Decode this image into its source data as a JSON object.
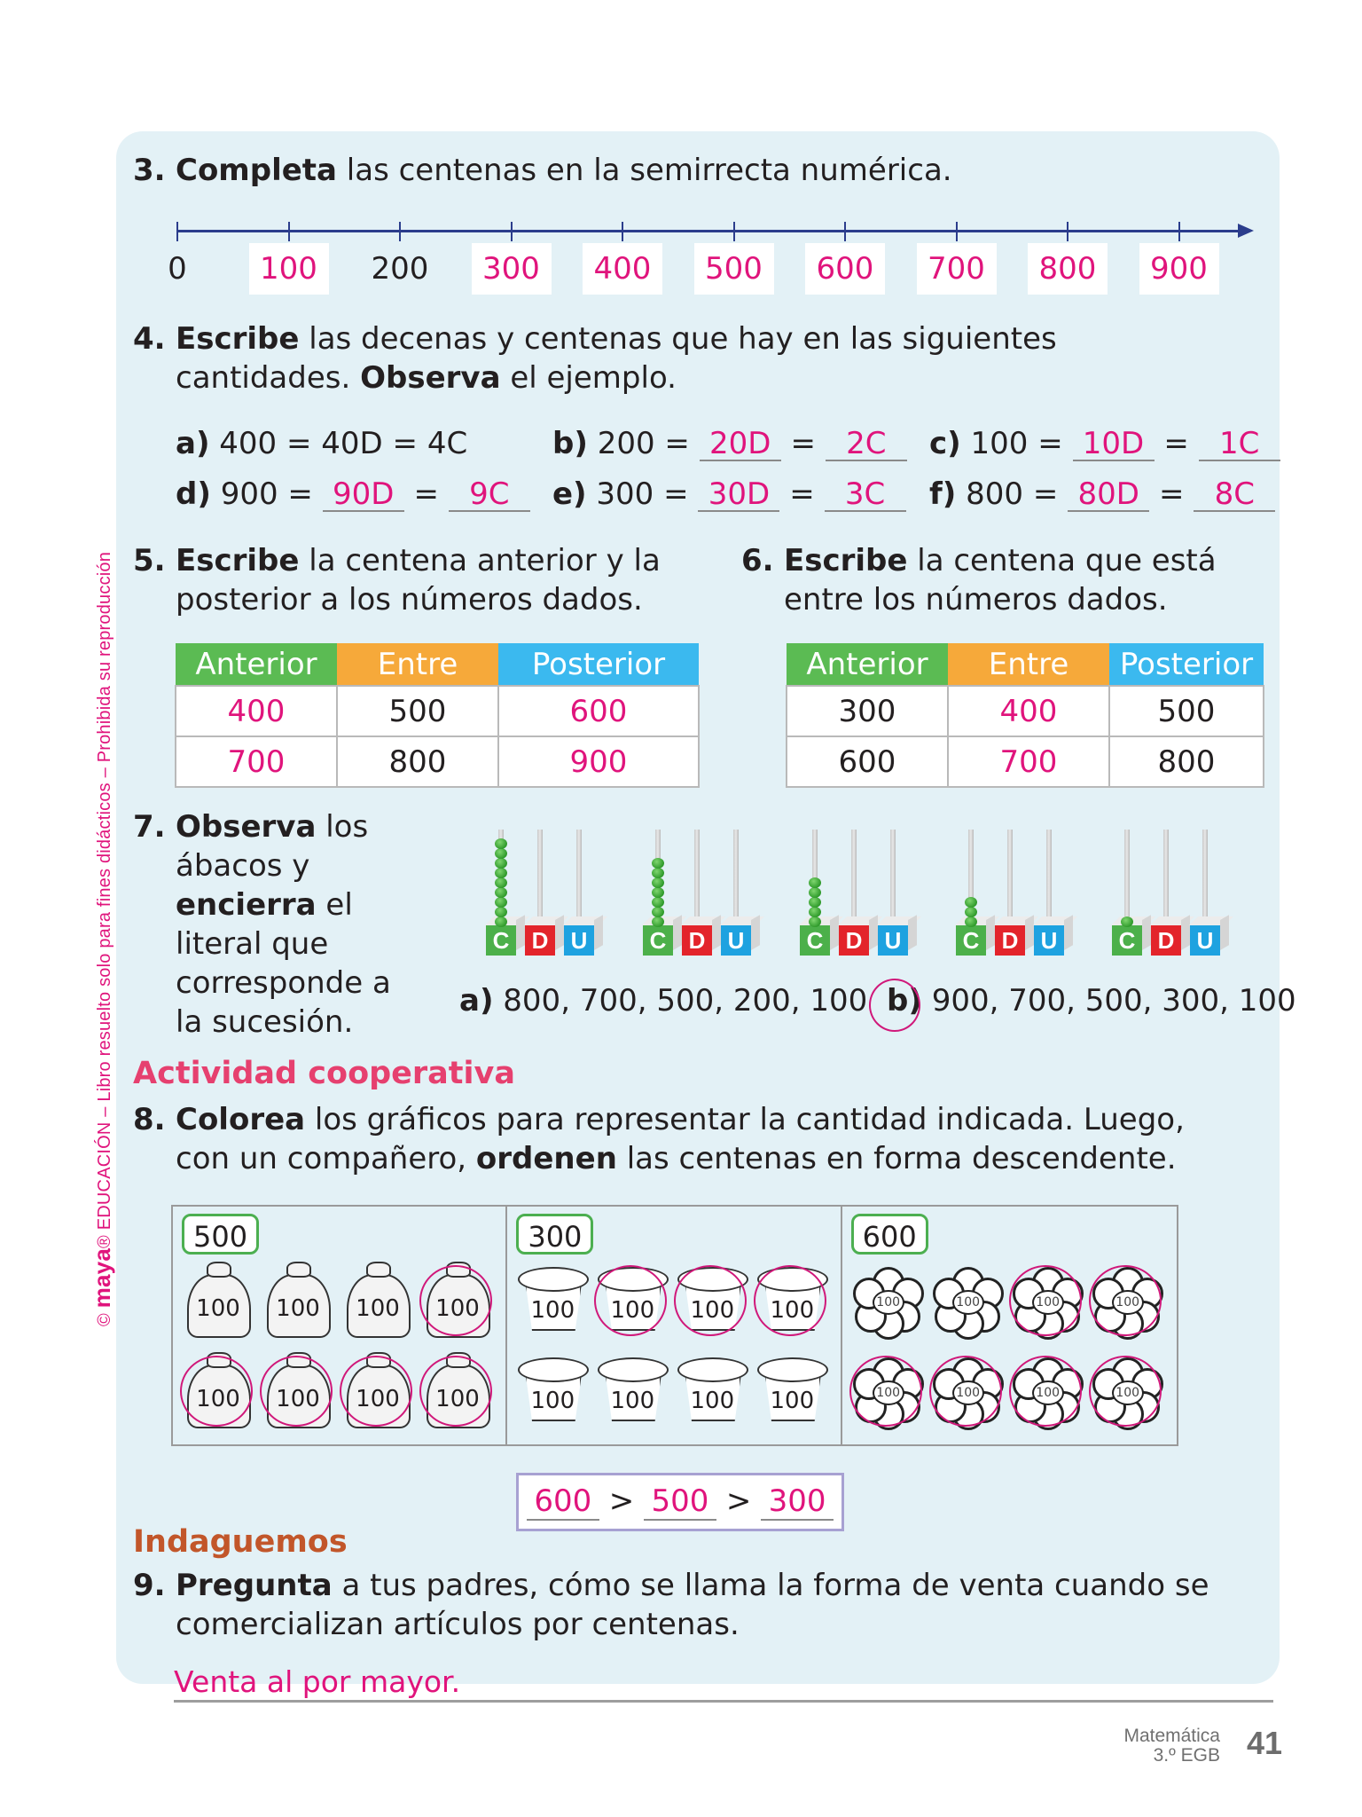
{
  "watermark": {
    "brand": "maya",
    "text": "EDUCACIÓN – Libro resuelto solo para fines didácticos – Prohibida su reproducción"
  },
  "q3": {
    "number": "3.",
    "bold": "Completa",
    "text": " las centenas en la semirrecta numérica.",
    "labels": [
      {
        "value": "0",
        "answer": false
      },
      {
        "value": "100",
        "answer": true
      },
      {
        "value": "200",
        "answer": false
      },
      {
        "value": "300",
        "answer": true
      },
      {
        "value": "400",
        "answer": true
      },
      {
        "value": "500",
        "answer": true
      },
      {
        "value": "600",
        "answer": true
      },
      {
        "value": "700",
        "answer": true
      },
      {
        "value": "800",
        "answer": true
      },
      {
        "value": "900",
        "answer": true
      }
    ]
  },
  "q4": {
    "number": "4.",
    "bold1": "Escribe",
    "text1": " las decenas y centenas que hay en las siguientes",
    "text2": "cantidades. ",
    "bold2": "Observa",
    "text3": " el ejemplo.",
    "example": {
      "letter": "a)",
      "text": "400 = 40D = 4C"
    },
    "items": [
      {
        "letter": "b)",
        "number": "200",
        "tens": "20D",
        "hundreds": "2C"
      },
      {
        "letter": "c)",
        "number": "100",
        "tens": "10D",
        "hundreds": "1C"
      },
      {
        "letter": "d)",
        "number": "900",
        "tens": "90D",
        "hundreds": "9C"
      },
      {
        "letter": "e)",
        "number": "300",
        "tens": "30D",
        "hundreds": "3C"
      },
      {
        "letter": "f)",
        "number": "800",
        "tens": "80D",
        "hundreds": "8C"
      }
    ]
  },
  "q5": {
    "number": "5.",
    "bold": "Escribe",
    "text1": " la centena anterior y la",
    "text2": "posterior a los números dados.",
    "headers": [
      "Anterior",
      "Entre",
      "Posterior"
    ],
    "rows": [
      [
        "400",
        "500",
        "600"
      ],
      [
        "700",
        "800",
        "900"
      ]
    ]
  },
  "q6": {
    "number": "6.",
    "bold": "Escribe",
    "text1": " la centena que está",
    "text2": "entre los números dados.",
    "headers": [
      "Anterior",
      "Entre",
      "Posterior"
    ],
    "rows": [
      [
        "300",
        "400",
        "500"
      ],
      [
        "600",
        "700",
        "800"
      ]
    ]
  },
  "q7": {
    "number": "7.",
    "lines": [
      {
        "bold": "Observa",
        "text": " los"
      },
      {
        "bold": "",
        "text": "ábacos y"
      },
      {
        "bold": "encierra",
        "text": " el"
      },
      {
        "bold": "",
        "text": "literal que"
      },
      {
        "bold": "",
        "text": "corresponde a"
      },
      {
        "bold": "",
        "text": "la sucesión."
      }
    ],
    "abacus_labels": [
      "C",
      "D",
      "U"
    ],
    "abaci_hundreds_beads": [
      9,
      7,
      5,
      3,
      1
    ],
    "options": [
      {
        "letter": "a)",
        "text": "800, 700, 500, 200, 100",
        "circled": false
      },
      {
        "letter": "b)",
        "text": "900, 700, 500, 300, 100",
        "circled": true
      }
    ]
  },
  "coop": {
    "title": "Actividad cooperativa"
  },
  "q8": {
    "number": "8.",
    "bold1": "Colorea",
    "text1": " los gráficos para representar la cantidad indicada. Luego,",
    "text2": "con un compañero, ",
    "bold2": "ordenen",
    "text3": " las centenas en forma descendente.",
    "panels": [
      {
        "target": "500",
        "kind": "bag",
        "item_value": "100",
        "circled": [
          false,
          false,
          false,
          true,
          true,
          true,
          true,
          true
        ]
      },
      {
        "target": "300",
        "kind": "pot",
        "item_value": "100",
        "circled": [
          false,
          true,
          true,
          true,
          false,
          false,
          false,
          false
        ]
      },
      {
        "target": "600",
        "kind": "flower",
        "item_value": "100",
        "circled": [
          false,
          false,
          true,
          true,
          true,
          true,
          true,
          true
        ]
      }
    ],
    "order": {
      "first": "600",
      "second": "500",
      "third": "300",
      "symbol": ">"
    }
  },
  "indaguemos": {
    "title": "Indaguemos"
  },
  "q9": {
    "number": "9.",
    "bold": "Pregunta",
    "text1": " a tus padres, cómo se llama la forma de venta cuando se",
    "text2": "comercializan artículos por centenas.",
    "answer": "Venta al por mayor."
  },
  "footer": {
    "subject": "Matemática",
    "grade": "3.º EGB",
    "page": "41"
  },
  "colors": {
    "answer": "#e0147c",
    "panel": "#e3f1f6",
    "green": "#5bbb53",
    "orange": "#f6a93a",
    "blue": "#3bb9ef"
  }
}
